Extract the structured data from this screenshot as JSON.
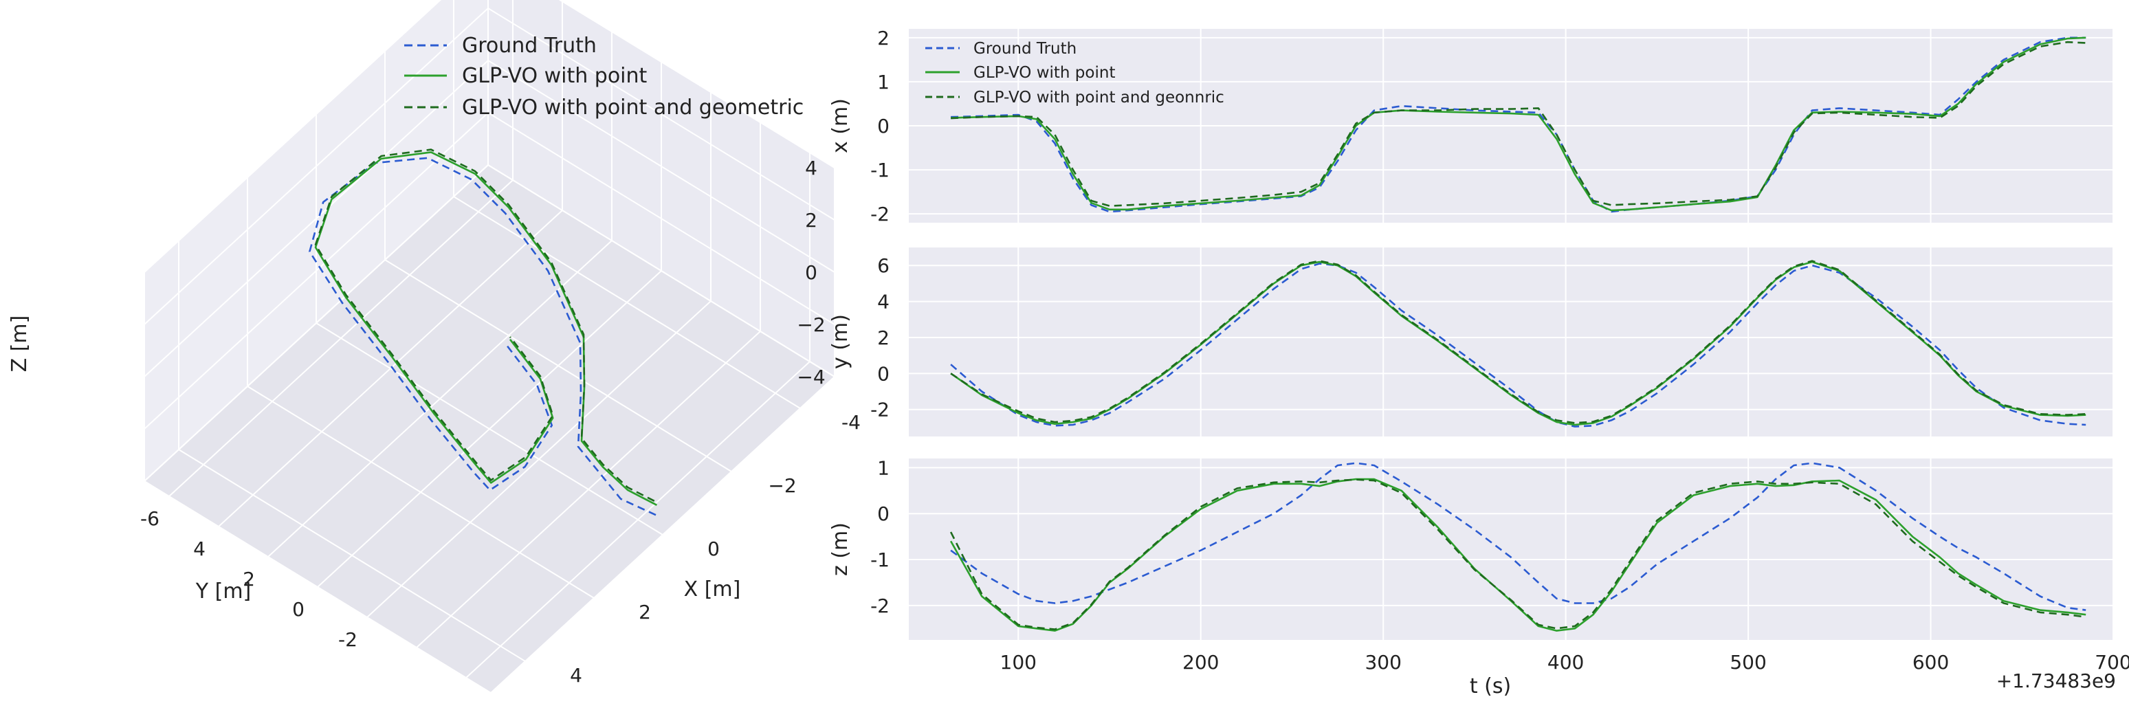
{
  "colors": {
    "ground_truth": "#2b5bd1",
    "point": "#2ca02c",
    "point_geometric": "#1e6b1e",
    "panel_bg": "#eaeaf2",
    "grid": "#ffffff"
  },
  "chart_data": [
    {
      "type": "line3d",
      "legend": {
        "placement": "top-right",
        "entries": [
          "Ground Truth",
          "GLP-VO with point",
          "GLP-VO with point and geometric"
        ]
      },
      "xlabel": "X [m]",
      "ylabel": "Y [m]",
      "zlabel": "Z [m]",
      "x_ticks": [
        "-4",
        "−2",
        "0",
        "2",
        "4"
      ],
      "y_ticks": [
        "-6",
        "4",
        "2",
        "0",
        "-2"
      ],
      "z_ticks": [
        "4",
        "2",
        "0",
        "−2",
        "−4"
      ],
      "xlim": [
        -5,
        5
      ],
      "ylim": [
        -7,
        7
      ],
      "zlim": [
        -4,
        4
      ],
      "grid": true,
      "series": [
        {
          "name": "Ground Truth",
          "style": "dashed",
          "points": [
            [
              0.2,
              -7.0,
              -3.0
            ],
            [
              0.5,
              -6.0,
              -2.6
            ],
            [
              0.4,
              -5.0,
              -2.3
            ],
            [
              0.3,
              -4.0,
              -2.0
            ],
            [
              -0.5,
              -3.0,
              -1.5
            ],
            [
              -1.2,
              -2.0,
              -1.0
            ],
            [
              -1.7,
              0.0,
              0.0
            ],
            [
              -1.9,
              2.0,
              0.8
            ],
            [
              -2.0,
              3.5,
              1.1
            ],
            [
              -1.8,
              5.0,
              1.3
            ],
            [
              -1.0,
              6.0,
              1.5
            ],
            [
              0.3,
              6.3,
              1.4
            ],
            [
              1.2,
              5.6,
              1.0
            ],
            [
              1.4,
              4.0,
              0.2
            ],
            [
              1.5,
              2.0,
              -0.8
            ],
            [
              1.7,
              0.0,
              -1.6
            ],
            [
              1.9,
              -2.0,
              -2.2
            ],
            [
              2.0,
              -2.8,
              -2.3
            ],
            [
              1.2,
              -3.1,
              -2.2
            ],
            [
              0.2,
              -2.8,
              -2.0
            ],
            [
              -0.3,
              -1.5,
              -1.8
            ],
            [
              -0.5,
              0.0,
              -1.4
            ]
          ]
        },
        {
          "name": "GLP-VO with point",
          "style": "solid",
          "points": [
            [
              0.1,
              -6.9,
              -2.8
            ],
            [
              0.3,
              -6.0,
              -2.5
            ],
            [
              0.3,
              -5.0,
              -2.2
            ],
            [
              0.2,
              -4.0,
              -1.9
            ],
            [
              -0.6,
              -3.0,
              -1.4
            ],
            [
              -1.3,
              -2.0,
              -0.9
            ],
            [
              -1.8,
              0.0,
              0.1
            ],
            [
              -2.0,
              2.0,
              0.9
            ],
            [
              -2.1,
              3.5,
              1.2
            ],
            [
              -1.9,
              5.0,
              1.4
            ],
            [
              -1.1,
              5.9,
              1.6
            ],
            [
              0.2,
              6.1,
              1.5
            ],
            [
              1.1,
              5.5,
              1.1
            ],
            [
              1.3,
              4.0,
              0.3
            ],
            [
              1.4,
              2.0,
              -0.7
            ],
            [
              1.6,
              0.0,
              -1.5
            ],
            [
              1.8,
              -2.0,
              -2.1
            ],
            [
              1.9,
              -2.7,
              -2.2
            ],
            [
              1.1,
              -3.0,
              -2.1
            ],
            [
              0.1,
              -2.7,
              -1.9
            ],
            [
              -0.4,
              -1.5,
              -1.7
            ],
            [
              -0.6,
              0.0,
              -1.3
            ]
          ]
        },
        {
          "name": "GLP-VO with point and geometric",
          "style": "dashed",
          "points": [
            [
              0.1,
              -6.8,
              -2.7
            ],
            [
              0.3,
              -6.0,
              -2.4
            ],
            [
              0.3,
              -5.0,
              -2.1
            ],
            [
              0.2,
              -4.0,
              -1.8
            ],
            [
              -0.6,
              -3.0,
              -1.3
            ],
            [
              -1.3,
              -2.0,
              -0.8
            ],
            [
              -1.8,
              0.0,
              0.2
            ],
            [
              -2.0,
              2.0,
              1.0
            ],
            [
              -2.1,
              3.5,
              1.3
            ],
            [
              -1.9,
              5.0,
              1.5
            ],
            [
              -1.1,
              5.9,
              1.7
            ],
            [
              0.2,
              6.1,
              1.6
            ],
            [
              1.1,
              5.5,
              1.2
            ],
            [
              1.3,
              4.0,
              0.4
            ],
            [
              1.4,
              2.0,
              -0.6
            ],
            [
              1.6,
              0.0,
              -1.4
            ],
            [
              1.8,
              -2.0,
              -2.0
            ],
            [
              1.9,
              -2.7,
              -2.1
            ],
            [
              1.1,
              -3.0,
              -2.0
            ],
            [
              0.1,
              -2.7,
              -1.8
            ],
            [
              -0.4,
              -1.5,
              -1.6
            ],
            [
              -0.6,
              0.0,
              -1.2
            ]
          ]
        }
      ]
    },
    {
      "type": "line",
      "xlabel": "t (s)",
      "offset_label": "+1.73483e9",
      "xlim": [
        40,
        700
      ],
      "x_ticks": [
        100,
        200,
        300,
        400,
        500,
        600,
        700
      ],
      "grid": true,
      "legend": {
        "placement": "top-left",
        "entries": [
          "Ground Truth",
          "GLP-VO with point",
          "GLP-VO with point and geonnric"
        ]
      },
      "t": [
        63,
        80,
        100,
        110,
        120,
        130,
        140,
        150,
        160,
        180,
        200,
        220,
        240,
        255,
        265,
        275,
        285,
        295,
        310,
        330,
        350,
        370,
        385,
        395,
        405,
        415,
        425,
        435,
        450,
        470,
        490,
        505,
        515,
        525,
        535,
        550,
        570,
        590,
        605,
        615,
        625,
        640,
        660,
        675,
        685
      ],
      "panels": [
        {
          "ylabel": "x (m)",
          "ylim": [
            -2.2,
            2.2
          ],
          "y_ticks": [
            -2,
            -1,
            0,
            1,
            2
          ],
          "series": [
            {
              "name": "Ground Truth",
              "style": "dashed",
              "values": [
                0.2,
                0.22,
                0.25,
                0.1,
                -0.4,
                -1.2,
                -1.8,
                -1.95,
                -1.92,
                -1.85,
                -1.78,
                -1.72,
                -1.65,
                -1.6,
                -1.4,
                -0.8,
                -0.1,
                0.35,
                0.45,
                0.4,
                0.35,
                0.32,
                0.3,
                -0.2,
                -1.0,
                -1.7,
                -1.95,
                -1.9,
                -1.85,
                -1.78,
                -1.7,
                -1.6,
                -1.0,
                -0.2,
                0.35,
                0.4,
                0.35,
                0.3,
                0.25,
                0.6,
                1.0,
                1.5,
                1.9,
                2.0,
                2.0
              ]
            },
            {
              "name": "GLP-VO with point",
              "style": "solid",
              "values": [
                0.18,
                0.2,
                0.22,
                0.15,
                -0.3,
                -1.1,
                -1.75,
                -1.9,
                -1.9,
                -1.82,
                -1.76,
                -1.7,
                -1.63,
                -1.58,
                -1.35,
                -0.7,
                0.0,
                0.3,
                0.35,
                0.32,
                0.3,
                0.28,
                0.25,
                -0.3,
                -1.1,
                -1.75,
                -1.92,
                -1.9,
                -1.85,
                -1.78,
                -1.72,
                -1.62,
                -0.9,
                -0.1,
                0.3,
                0.32,
                0.3,
                0.27,
                0.22,
                0.5,
                0.95,
                1.45,
                1.85,
                1.98,
                2.0
              ]
            },
            {
              "name": "GLP-VO with point and geonnric",
              "style": "dashed",
              "values": [
                0.17,
                0.2,
                0.22,
                0.2,
                -0.2,
                -1.0,
                -1.7,
                -1.82,
                -1.8,
                -1.76,
                -1.7,
                -1.64,
                -1.57,
                -1.5,
                -1.3,
                -0.65,
                0.05,
                0.3,
                0.35,
                0.35,
                0.38,
                0.38,
                0.4,
                -0.2,
                -1.0,
                -1.7,
                -1.8,
                -1.78,
                -1.76,
                -1.72,
                -1.68,
                -1.6,
                -0.95,
                -0.15,
                0.28,
                0.3,
                0.25,
                0.2,
                0.18,
                0.45,
                0.9,
                1.4,
                1.8,
                1.9,
                1.88
              ]
            }
          ]
        },
        {
          "ylabel": "y (m)",
          "ylim": [
            -3.5,
            7.0
          ],
          "y_ticks": [
            -2,
            0,
            2,
            4,
            6
          ],
          "series": [
            {
              "name": "Ground Truth",
              "style": "dashed",
              "values": [
                0.5,
                -1.0,
                -2.3,
                -2.7,
                -2.9,
                -2.85,
                -2.6,
                -2.2,
                -1.6,
                -0.3,
                1.3,
                3.0,
                4.7,
                5.8,
                6.1,
                6.0,
                5.6,
                4.8,
                3.5,
                2.1,
                0.6,
                -0.9,
                -2.1,
                -2.7,
                -2.95,
                -2.9,
                -2.6,
                -2.1,
                -1.1,
                0.5,
                2.3,
                3.9,
                4.9,
                5.7,
                6.0,
                5.6,
                4.2,
                2.6,
                1.3,
                0.2,
                -0.8,
                -1.9,
                -2.6,
                -2.8,
                -2.85
              ]
            },
            {
              "name": "GLP-VO with point",
              "style": "solid",
              "values": [
                0.0,
                -1.2,
                -2.2,
                -2.6,
                -2.8,
                -2.7,
                -2.5,
                -2.0,
                -1.4,
                0.0,
                1.6,
                3.3,
                5.0,
                6.0,
                6.2,
                6.0,
                5.4,
                4.5,
                3.2,
                1.8,
                0.3,
                -1.2,
                -2.2,
                -2.7,
                -2.85,
                -2.75,
                -2.4,
                -1.8,
                -0.8,
                0.8,
                2.6,
                4.2,
                5.2,
                5.9,
                6.2,
                5.7,
                4.0,
                2.3,
                1.0,
                -0.1,
                -1.0,
                -1.8,
                -2.3,
                -2.35,
                -2.3
              ]
            },
            {
              "name": "GLP-VO with point and geonnric",
              "style": "dashed",
              "values": [
                0.0,
                -1.15,
                -2.1,
                -2.5,
                -2.7,
                -2.62,
                -2.42,
                -1.95,
                -1.35,
                0.05,
                1.65,
                3.35,
                5.05,
                6.05,
                6.25,
                6.05,
                5.45,
                4.55,
                3.25,
                1.85,
                0.35,
                -1.15,
                -2.15,
                -2.6,
                -2.75,
                -2.68,
                -2.35,
                -1.75,
                -0.75,
                0.85,
                2.65,
                4.25,
                5.25,
                5.95,
                6.25,
                5.75,
                4.05,
                2.35,
                1.05,
                -0.05,
                -0.95,
                -1.75,
                -2.25,
                -2.3,
                -2.25
              ]
            }
          ]
        },
        {
          "ylabel": "z (m)",
          "ylim": [
            -2.75,
            1.2
          ],
          "y_ticks": [
            -2,
            -1,
            0,
            1
          ],
          "series": [
            {
              "name": "Ground Truth",
              "style": "dashed",
              "values": [
                -0.8,
                -1.3,
                -1.75,
                -1.9,
                -1.95,
                -1.9,
                -1.8,
                -1.65,
                -1.5,
                -1.15,
                -0.8,
                -0.4,
                0.0,
                0.4,
                0.75,
                1.05,
                1.1,
                1.05,
                0.7,
                0.2,
                -0.35,
                -0.95,
                -1.5,
                -1.85,
                -1.95,
                -1.95,
                -1.85,
                -1.6,
                -1.1,
                -0.6,
                -0.1,
                0.35,
                0.75,
                1.05,
                1.1,
                1.0,
                0.5,
                -0.1,
                -0.5,
                -0.75,
                -0.95,
                -1.3,
                -1.8,
                -2.05,
                -2.1
              ]
            },
            {
              "name": "GLP-VO with point",
              "style": "solid",
              "values": [
                -0.6,
                -1.8,
                -2.45,
                -2.5,
                -2.55,
                -2.4,
                -2.0,
                -1.5,
                -1.2,
                -0.5,
                0.1,
                0.5,
                0.65,
                0.65,
                0.6,
                0.7,
                0.75,
                0.75,
                0.5,
                -0.3,
                -1.2,
                -1.9,
                -2.45,
                -2.55,
                -2.5,
                -2.2,
                -1.7,
                -1.1,
                -0.2,
                0.4,
                0.6,
                0.65,
                0.6,
                0.62,
                0.7,
                0.72,
                0.3,
                -0.5,
                -0.95,
                -1.3,
                -1.55,
                -1.9,
                -2.1,
                -2.15,
                -2.2
              ]
            },
            {
              "name": "GLP-VO with point and geonnric",
              "style": "dashed",
              "values": [
                -0.4,
                -1.75,
                -2.42,
                -2.48,
                -2.52,
                -2.38,
                -1.98,
                -1.48,
                -1.18,
                -0.48,
                0.15,
                0.55,
                0.68,
                0.7,
                0.68,
                0.72,
                0.74,
                0.72,
                0.45,
                -0.35,
                -1.22,
                -1.88,
                -2.42,
                -2.5,
                -2.45,
                -2.15,
                -1.65,
                -1.05,
                -0.15,
                0.45,
                0.65,
                0.7,
                0.65,
                0.65,
                0.68,
                0.65,
                0.2,
                -0.6,
                -1.05,
                -1.35,
                -1.6,
                -1.95,
                -2.15,
                -2.2,
                -2.25
              ]
            }
          ]
        }
      ]
    }
  ]
}
